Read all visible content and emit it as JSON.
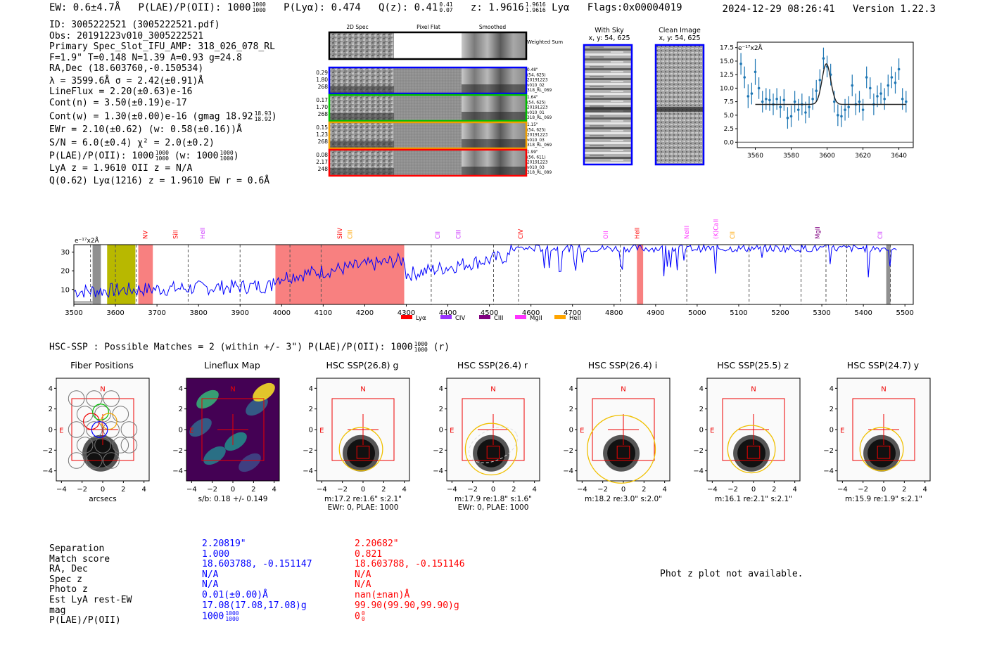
{
  "header": {
    "ew": "EW: 0.6±4.7Å",
    "plae_label": "P(LAE)/P(OII): 1000",
    "plae_num": "1000",
    "plae_den": "1000",
    "plya": "P(Lyα): 0.474",
    "qz_label": "Q(z): 0.41",
    "qz_num": "0.41",
    "qz_den": "0.07",
    "z_label": "z: 1.9616",
    "z_num": "1.9616",
    "z_den": "1.9616",
    "z_line": "Lyα",
    "flags": "Flags:0x00004019",
    "timestamp": "2024-12-29 08:26:41",
    "version": "Version 1.22.3"
  },
  "info": {
    "lines": [
      "ID: 3005222521 (3005222521.pdf)",
      "Obs: 20191223v010_3005222521",
      "Primary Spec_Slot_IFU_AMP: 318_026_078_RL",
      "F=1.9\"  T=0.148  N=1.39  A=0.93  g=24.8",
      "RA,Dec (18.603760,-0.150534)",
      "λ = 3599.6Å   σ = 2.42(±0.91)Å",
      "LineFlux = 2.20(±0.63)e-16",
      "Cont(n) = 3.50(±0.19)e-17"
    ],
    "contw": "Cont(w) = 1.30(±0.00)e-16 (gmag 18.92",
    "contw_num": "18.93",
    "contw_den": "18.92",
    "contw_end": ")",
    "ewr": "EWr = 2.10(±0.62) (w: 0.58(±0.16))Å",
    "sn": "S/N = 6.0(±0.4)  χ² = 2.0(±0.2)",
    "plae_pre": "P(LAE)/P(OII): 1000",
    "plae_num": "1000",
    "plae_den": "1000",
    "plae_mid": "(w: 1000",
    "plae_num2": "1000",
    "plae_den2": "1000",
    "plae_end": ")",
    "lya_line": "LyA z = 1.9610  OII z = N/A",
    "q_line": "Q(0.62) Lyα(1216) z = 1.9610  EW r = 0.6Å"
  },
  "cutouts": {
    "col1": "2D Spec",
    "col2": "Pixel Flat",
    "col3": "Smoothed",
    "weighted": "Weighted Sum",
    "rows": [
      {
        "left": [
          "0.29",
          "1.80",
          "268"
        ],
        "right": [
          "0.48\"",
          "(54, 625)",
          "20191223",
          "v010_02",
          "318_RL_069"
        ],
        "color": "#0000ff"
      },
      {
        "left": [
          "0.17",
          "1.70",
          "268"
        ],
        "right": [
          "1.64\"",
          "(54, 625)",
          "20191223",
          "v010_01",
          "318_RL_069"
        ],
        "color": "#00c000"
      },
      {
        "left": [
          "0.15",
          "1.23",
          "268"
        ],
        "right": [
          "1.15\"",
          "(54, 625)",
          "20191223",
          "v010_03",
          "318_RL_069"
        ],
        "color": "#f0a000"
      },
      {
        "left": [
          "0.08",
          "2.17",
          "248"
        ],
        "right": [
          "1.99\"",
          "(56, 611)",
          "20191223",
          "v010_03",
          "318_RL_089"
        ],
        "color": "#ff0000"
      }
    ]
  },
  "sky": {
    "with_sky": "With Sky",
    "with_sky_xy": "x, y: 54, 625",
    "clean": "Clean Image",
    "clean_xy": "x, y: 54, 625"
  },
  "zoom_chart": {
    "unit": "e⁻¹⁷x2Å",
    "yticks": [
      "17.5",
      "15.0",
      "12.5",
      "10.0",
      "7.5",
      "5.0",
      "2.5",
      "0.0"
    ],
    "xticks": [
      "3560",
      "3580",
      "3600",
      "3620",
      "3640"
    ]
  },
  "spectrum": {
    "unit": "e⁻¹⁷x2Å",
    "yticks": [
      "30",
      "20",
      "10"
    ],
    "xticks": [
      "3500",
      "3600",
      "3700",
      "3800",
      "3900",
      "4000",
      "4100",
      "4200",
      "4300",
      "4400",
      "4500",
      "4600",
      "4700",
      "4800",
      "4900",
      "5000",
      "5100",
      "5200",
      "5300",
      "5400",
      "5500"
    ],
    "lines": [
      {
        "label": "NV",
        "color": "#ff0000"
      },
      {
        "label": "SiII",
        "color": "#ff0000"
      },
      {
        "label": "HeII",
        "color": "#cc33ff"
      },
      {
        "label": "SiIV",
        "color": "#ff0000"
      },
      {
        "label": "CIII",
        "color": "#ffa500"
      },
      {
        "label": "CII",
        "color": "#cc33ff"
      },
      {
        "label": "CIII",
        "color": "#cc33ff"
      },
      {
        "label": "CIV",
        "color": "#ff0000"
      },
      {
        "label": "OII",
        "color": "#ff33ff"
      },
      {
        "label": "HeII",
        "color": "#ff0000"
      },
      {
        "label": "NeIII",
        "color": "#ff33ff"
      },
      {
        "label": "(K)CaII",
        "color": "#ff33ff"
      },
      {
        "label": "CII",
        "color": "#ffa500"
      },
      {
        "label": "MgII",
        "color": "#800080"
      },
      {
        "label": "CII",
        "color": "#cc33ff"
      }
    ],
    "legend": [
      {
        "label": "Lyα",
        "color": "#ff0000"
      },
      {
        "label": "CIV",
        "color": "#9933ff"
      },
      {
        "label": "CIII",
        "color": "#800080"
      },
      {
        "label": "MgII",
        "color": "#ff33ff"
      },
      {
        "label": "HeII",
        "color": "#ffa500"
      }
    ]
  },
  "hsc": {
    "title_pre": "HSC-SSP : Possible Matches = 2 (within +/- 3\")  P(LAE)/P(OII): 1000",
    "title_num": "1000",
    "title_den": "1000",
    "title_end": "(r)",
    "panels": [
      {
        "title": "Fiber Positions",
        "caption": "arcsecs",
        "caption2": ""
      },
      {
        "title": "Lineflux Map",
        "caption": "s/b: 0.18 +/- 0.149",
        "caption2": ""
      },
      {
        "title": "HSC SSP(26.8) g",
        "caption": "m:17.2  re:1.6\"  s:2.1\"",
        "caption2": "EWr: 0, PLAE: 1000"
      },
      {
        "title": "HSC SSP(26.4) r",
        "caption": "m:17.9  re:1.8\"  s:1.6\"",
        "caption2": "EWr: 0, PLAE: 1000"
      },
      {
        "title": "HSC SSP(26.4) i",
        "caption": "m:18.2  re:3.0\"  s:2.0\"",
        "caption2": ""
      },
      {
        "title": "HSC SSP(25.5) z",
        "caption": "m:16.1  re:2.1\"  s:2.1\"",
        "caption2": ""
      },
      {
        "title": "HSC SSP(24.7) y",
        "caption": "m:15.9  re:1.9\"  s:2.1\"",
        "caption2": ""
      }
    ],
    "ticks": [
      "4",
      "2",
      "0",
      "−2",
      "−4"
    ],
    "xticks": [
      "−4",
      "−2",
      "0",
      "2",
      "4"
    ],
    "n_label": "N",
    "e_label": "E"
  },
  "matches": {
    "labels": [
      "Separation",
      "Match score",
      "RA, Dec",
      "Spec z",
      "Photo z",
      "Est LyA rest-EW",
      "mag",
      "P(LAE)/P(OII)"
    ],
    "col1": [
      "2.20819\"",
      "1.000",
      "18.603788, -0.151147",
      "N/A",
      "N/A",
      "0.01(±0.00)Å",
      "17.08(17.08,17.08)g",
      "1000"
    ],
    "col1_num": "1000",
    "col1_den": "1000",
    "col2": [
      "2.20682\"",
      "0.821",
      "18.603788, -0.151146",
      "N/A",
      "N/A",
      "nan(±nan)Å",
      "99.90(99.90,99.90)g",
      "0"
    ],
    "col2_num": "0",
    "col2_den": "0",
    "photz": "Phot z plot not available."
  }
}
